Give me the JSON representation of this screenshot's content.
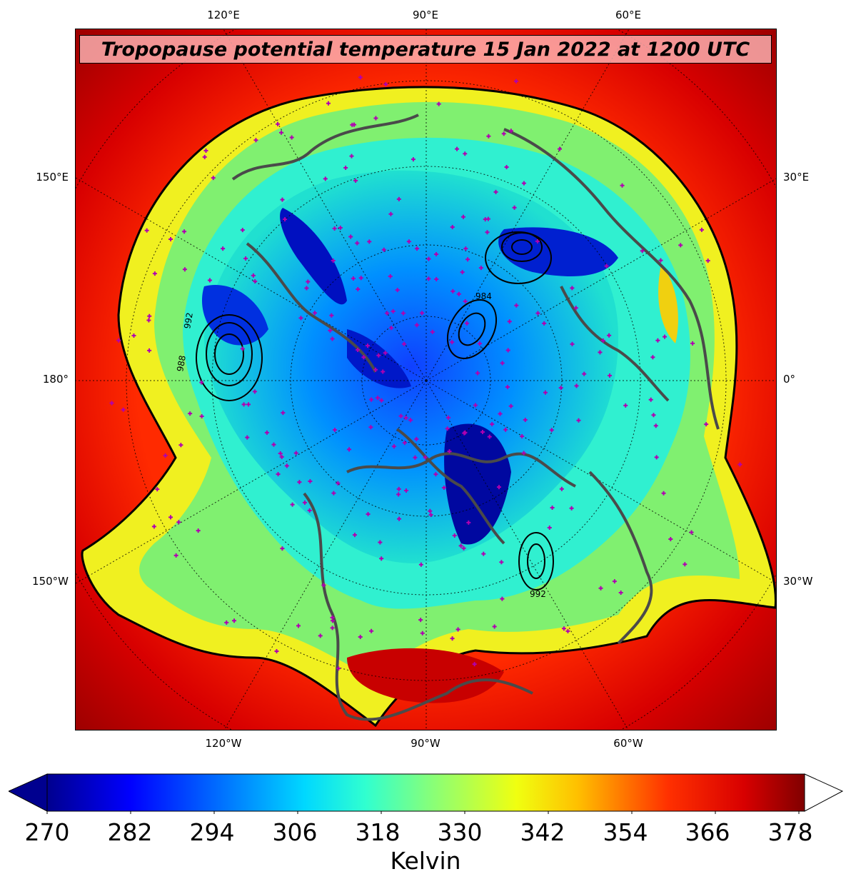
{
  "title": "Tropopause potential temperature 15 Jan 2022 at 1200 UTC",
  "map": {
    "projection": "north polar stereographic",
    "top_lon_labels": [
      "120°E",
      "90°E",
      "60°E"
    ],
    "bottom_lon_labels": [
      "120°W",
      "90°W",
      "60°W"
    ],
    "left_lon_labels": [
      "150°E",
      "180°",
      "150°W"
    ],
    "right_lon_labels": [
      "30°E",
      "0°",
      "30°W"
    ],
    "contour_labels": [
      "992",
      "988",
      "984",
      "992"
    ],
    "colors": {
      "frame_background": "#8b0000",
      "coastline": "#4a4a4a",
      "station_marker": "#b000b0",
      "contour": "#000000"
    },
    "layers": [
      "tropopause potential temperature fill",
      "sea level pressure contours",
      "coastlines",
      "lat/lon grid",
      "observation stations"
    ]
  },
  "colorbar": {
    "ticks": [
      "270",
      "282",
      "294",
      "306",
      "318",
      "330",
      "342",
      "354",
      "366",
      "378"
    ],
    "units": "Kelvin",
    "min": 270,
    "max": 378,
    "extend": "both",
    "colormap": "jet"
  }
}
